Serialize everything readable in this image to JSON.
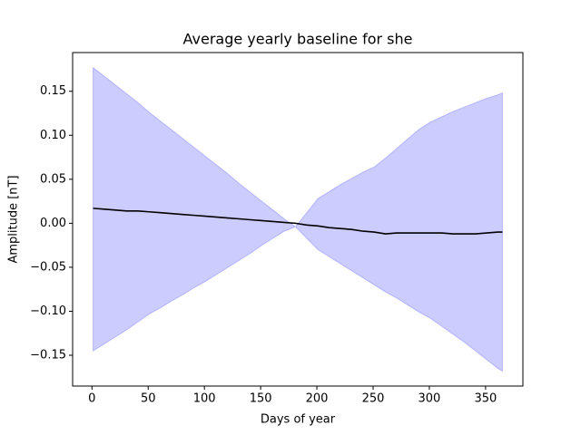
{
  "chart_data": {
    "type": "band-line",
    "title": "Average yearly baseline for she",
    "xlabel": "Days of year",
    "ylabel": "Amplitude [nT]",
    "x": [
      1,
      11,
      21,
      31,
      41,
      51,
      61,
      71,
      81,
      91,
      101,
      111,
      121,
      131,
      141,
      151,
      161,
      171,
      181,
      191,
      201,
      211,
      221,
      231,
      241,
      251,
      261,
      271,
      281,
      291,
      301,
      311,
      321,
      331,
      341,
      351,
      361,
      365
    ],
    "series": [
      {
        "color": "#000000",
        "values": [
          0.017,
          0.016,
          0.015,
          0.014,
          0.014,
          0.013,
          0.012,
          0.011,
          0.01,
          0.009,
          0.008,
          0.007,
          0.006,
          0.005,
          0.004,
          0.003,
          0.002,
          0.001,
          0.0,
          -0.002,
          -0.003,
          -0.005,
          -0.006,
          -0.007,
          -0.009,
          -0.01,
          -0.012,
          -0.011,
          -0.011,
          -0.011,
          -0.011,
          -0.011,
          -0.012,
          -0.012,
          -0.012,
          -0.011,
          -0.01,
          -0.01
        ]
      }
    ],
    "band": {
      "color": "#0000ff",
      "alpha": 0.2,
      "upper": [
        0.177,
        0.167,
        0.157,
        0.147,
        0.137,
        0.126,
        0.116,
        0.106,
        0.096,
        0.086,
        0.076,
        0.066,
        0.056,
        0.045,
        0.035,
        0.025,
        0.015,
        0.005,
        -0.004,
        0.012,
        0.028,
        0.036,
        0.044,
        0.051,
        0.058,
        0.064,
        0.074,
        0.085,
        0.096,
        0.107,
        0.115,
        0.121,
        0.127,
        0.132,
        0.137,
        0.142,
        0.146,
        0.148
      ],
      "lower": [
        -0.145,
        -0.137,
        -0.129,
        -0.121,
        -0.112,
        -0.103,
        -0.096,
        -0.088,
        -0.081,
        -0.073,
        -0.066,
        -0.058,
        -0.05,
        -0.042,
        -0.034,
        -0.025,
        -0.017,
        -0.009,
        -0.004,
        -0.017,
        -0.03,
        -0.038,
        -0.046,
        -0.054,
        -0.062,
        -0.07,
        -0.078,
        -0.085,
        -0.093,
        -0.101,
        -0.108,
        -0.117,
        -0.126,
        -0.135,
        -0.145,
        -0.155,
        -0.165,
        -0.168
      ]
    },
    "xlim": [
      -17.2,
      383.2
    ],
    "ylim": [
      -0.185,
      0.194
    ],
    "xticks": [
      0,
      50,
      100,
      150,
      200,
      250,
      300,
      350
    ],
    "yticks": [
      {
        "value": -0.15,
        "label": "−0.15"
      },
      {
        "value": -0.1,
        "label": "−0.10"
      },
      {
        "value": -0.05,
        "label": "−0.05"
      },
      {
        "value": 0,
        "label": "0.00"
      },
      {
        "value": 0.05,
        "label": "0.05"
      },
      {
        "value": 0.1,
        "label": "0.10"
      },
      0.15
    ]
  }
}
